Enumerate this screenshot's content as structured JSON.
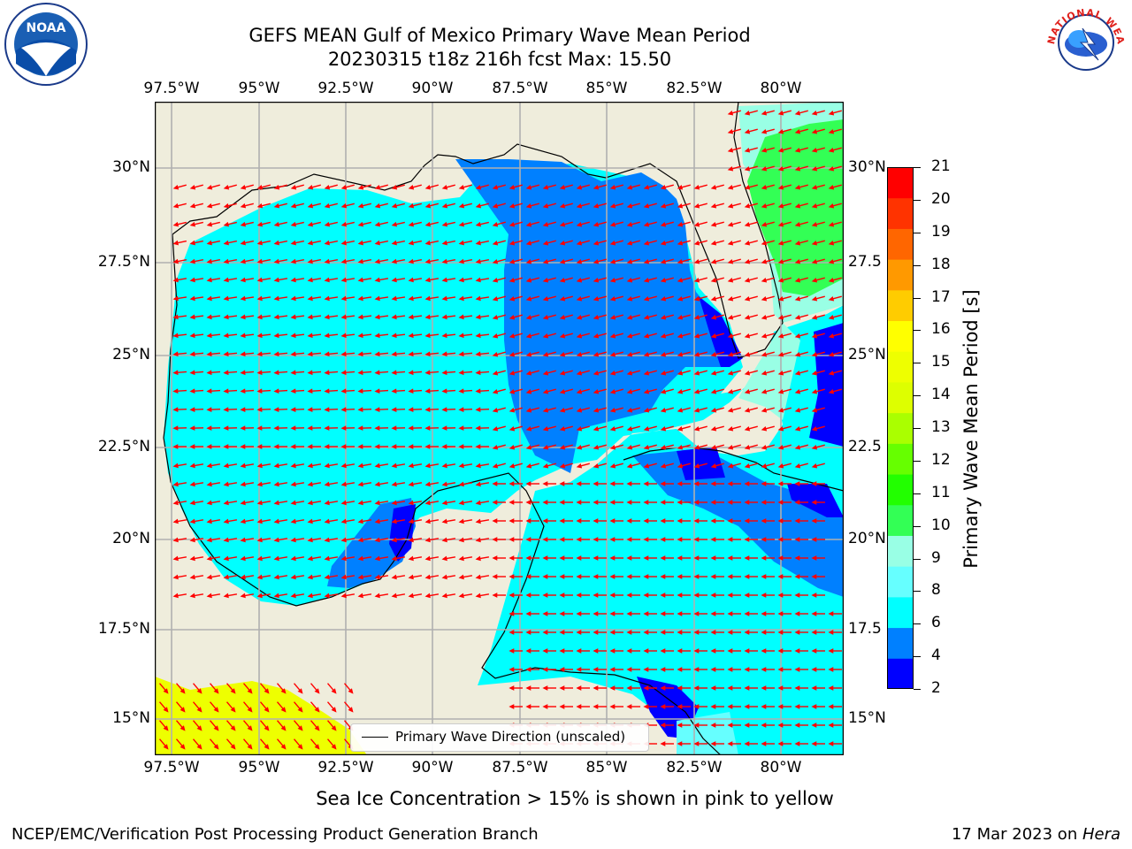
{
  "header": {
    "title_line1": "GEFS MEAN Gulf of Mexico Primary Wave Mean Period",
    "title_line2": "20230315 t18z 216h fcst   Max: 15.50"
  },
  "map": {
    "lon_ticks": [
      "97.5°W",
      "95°W",
      "92.5°W",
      "90°W",
      "87.5°W",
      "85°W",
      "82.5°W",
      "80°W"
    ],
    "lat_ticks_left": [
      "30°N",
      "27.5°N",
      "25°N",
      "22.5°N",
      "20°N",
      "17.5°N",
      "15°N"
    ],
    "lat_ticks_right": [
      "30°N",
      "27.5",
      "25°N",
      "22.5",
      "20°N",
      "17.5",
      "15°N"
    ],
    "colors": {
      "land": "#efeddc",
      "ocean_6_8": "#00ffff",
      "ocean_4_6": "#0080ff",
      "ocean_2_4": "#0000ff",
      "ocean_8_9": "#66ffff",
      "ocean_9_10": "#99ffe5",
      "ocean_10_11": "#33ff55",
      "ice_yellow": "#eeff00",
      "arrow": "#ff0000"
    }
  },
  "legend": {
    "label": "Primary Wave Direction (unscaled)"
  },
  "colorbar": {
    "label": "Primary Wave Mean Period [s]",
    "ticks": [
      "21",
      "20",
      "19",
      "18",
      "17",
      "16",
      "15",
      "14",
      "13",
      "12",
      "11",
      "10",
      "9",
      "8",
      "6",
      "4",
      "2"
    ],
    "bands": [
      "#0000ff",
      "#0080ff",
      "#00ffff",
      "#66ffff",
      "#99ffe5",
      "#33ff55",
      "#22ff00",
      "#66ff00",
      "#aaff00",
      "#ddff00",
      "#eeff00",
      "#ffff00",
      "#ffcc00",
      "#ff9900",
      "#ff6600",
      "#ff3300",
      "#ff0000"
    ]
  },
  "footer": {
    "note": "Sea Ice Concentration > 15% is shown in pink to yellow",
    "left": "NCEP/EMC/Verification Post Processing Product Generation Branch",
    "date": "17 Mar 2023 on ",
    "machine": "Hera"
  },
  "logos": {
    "noaa_text": "NOAA",
    "nws_text": "NATIONAL WEATHER SERVICE"
  }
}
